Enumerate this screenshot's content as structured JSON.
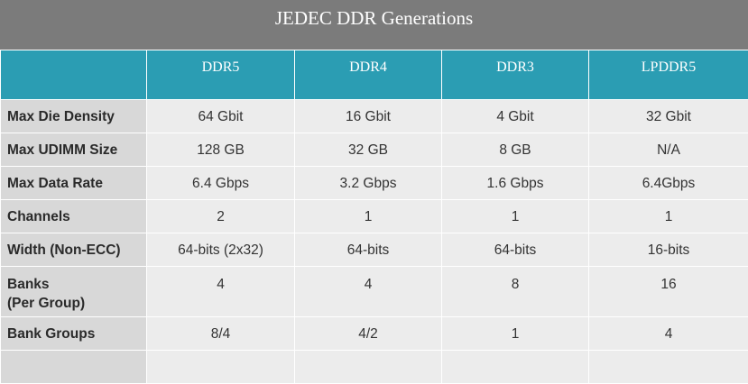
{
  "title": "JEDEC DDR Generations",
  "table": {
    "columns": [
      "DDR5",
      "DDR4",
      "DDR3",
      "LPDDR5"
    ],
    "rows": [
      [
        "Max Die Density",
        "64 Gbit",
        "16 Gbit",
        "4 Gbit",
        "32 Gbit"
      ],
      [
        "Max UDIMM Size",
        "128 GB",
        "32 GB",
        "8 GB",
        "N/A"
      ],
      [
        "Max Data Rate",
        "6.4 Gbps",
        "3.2 Gbps",
        "1.6 Gbps",
        "6.4Gbps"
      ],
      [
        "Channels",
        "2",
        "1",
        "1",
        "1"
      ],
      [
        "Width (Non-ECC)",
        "64-bits (2x32)",
        "64-bits",
        "64-bits",
        "16-bits"
      ],
      [
        "Banks\n(Per Group)",
        "4",
        "4",
        "8",
        "16"
      ],
      [
        "Bank Groups",
        "8/4",
        "4/2",
        "1",
        "4"
      ]
    ]
  }
}
